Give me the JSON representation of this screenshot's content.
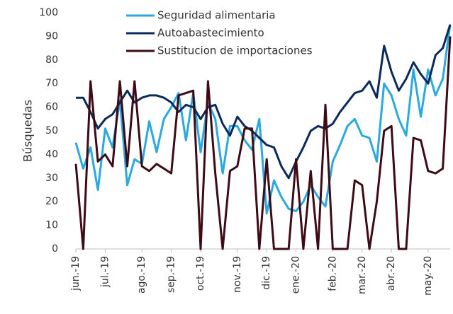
{
  "chart_data": {
    "type": "line",
    "y_label": "Búsquedas",
    "categories": [
      "jun.-19",
      null,
      null,
      null,
      "jul.-19",
      null,
      null,
      null,
      null,
      "ago.-19",
      null,
      null,
      null,
      "sep.-19",
      null,
      null,
      null,
      "oct.-19",
      null,
      null,
      null,
      null,
      "nov.-19",
      null,
      null,
      null,
      "dic.-19",
      null,
      null,
      null,
      "ene.-20",
      null,
      null,
      null,
      null,
      "feb.-20",
      null,
      null,
      null,
      "mar.-20",
      null,
      null,
      null,
      "abr.-20",
      null,
      null,
      null,
      null,
      "may.-20",
      null,
      null,
      null
    ],
    "series": [
      {
        "name": "Seguridad alimentaria",
        "color": "#29a9e0",
        "values": [
          45,
          34,
          43,
          25,
          51,
          43,
          63,
          27,
          38,
          36,
          54,
          41,
          55,
          60,
          66,
          46,
          66,
          41,
          62,
          55,
          32,
          52,
          52,
          46,
          42,
          55,
          15,
          29,
          22,
          17,
          16,
          20,
          27,
          22,
          18,
          37,
          44,
          52,
          55,
          48,
          47,
          37,
          70,
          65,
          55,
          48,
          76,
          56,
          76,
          65,
          72,
          95
        ]
      },
      {
        "name": "Autoabastecimiento",
        "color": "#0b2a5b",
        "values": [
          64,
          64,
          58,
          51,
          55,
          57,
          62,
          67,
          62,
          64,
          65,
          65,
          64,
          62,
          58,
          61,
          60,
          55,
          60,
          61,
          53,
          48,
          56,
          52,
          50,
          47,
          44,
          43,
          35,
          30,
          37,
          43,
          50,
          52,
          51,
          53,
          58,
          62,
          66,
          67,
          71,
          64,
          86,
          75,
          67,
          72,
          79,
          74,
          70,
          82,
          85,
          95
        ]
      },
      {
        "name": "Sustitucion de importaciones",
        "color": "#3d0a16",
        "values": [
          36,
          0,
          71,
          37,
          40,
          35,
          71,
          35,
          71,
          35,
          33,
          36,
          34,
          32,
          65,
          66,
          67,
          0,
          71,
          32,
          0,
          33,
          35,
          51,
          51,
          0,
          38,
          0,
          0,
          0,
          38,
          0,
          33,
          0,
          61,
          0,
          0,
          0,
          29,
          27,
          0,
          20,
          50,
          52,
          0,
          0,
          47,
          46,
          33,
          32,
          34,
          90
        ]
      }
    ],
    "ylim": [
      0,
      100
    ],
    "yticks": [
      0,
      10,
      20,
      30,
      40,
      50,
      60,
      70,
      80,
      90,
      100
    ],
    "grid": false
  }
}
